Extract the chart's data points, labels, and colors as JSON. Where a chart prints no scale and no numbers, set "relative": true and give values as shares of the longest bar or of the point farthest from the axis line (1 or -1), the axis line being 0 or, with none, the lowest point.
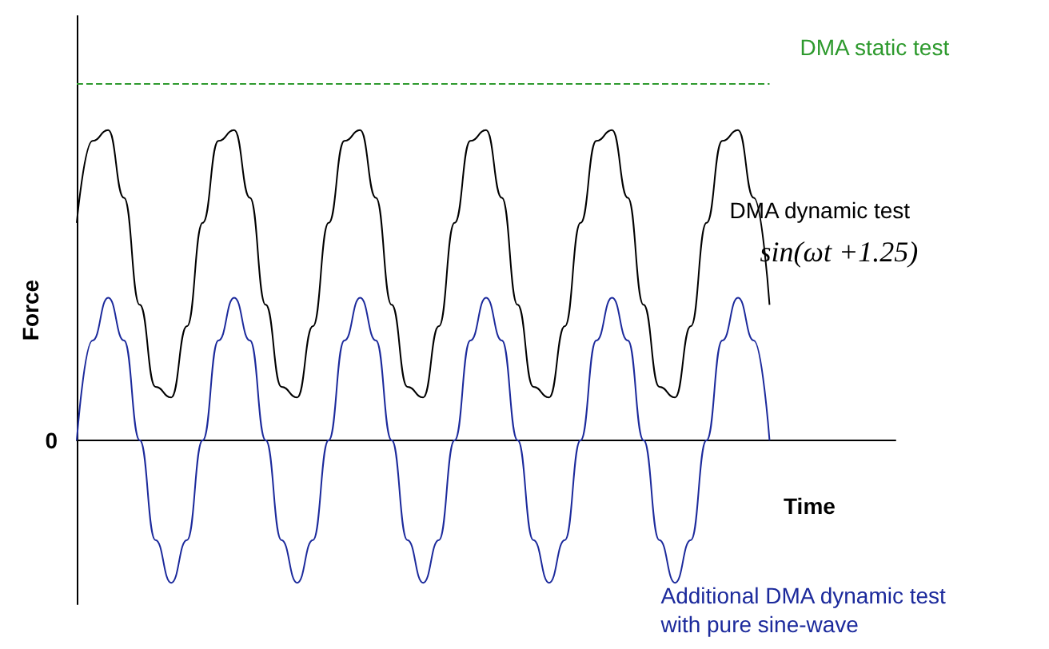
{
  "chart_data": {
    "type": "line",
    "relative": true,
    "xlabel": "Time",
    "ylabel": "Force",
    "legend": false,
    "grid": false,
    "marker": "none",
    "categories": [
      null,
      null,
      null,
      null,
      null,
      null,
      null,
      null,
      null,
      null,
      null,
      null,
      null,
      null,
      null,
      null,
      null,
      null,
      null,
      null,
      null,
      null,
      null,
      null,
      null,
      null,
      null,
      null,
      null,
      null,
      null,
      null,
      null,
      null,
      null,
      null,
      null,
      null,
      null,
      null,
      null,
      null,
      null,
      null,
      null,
      null,
      null,
      null,
      null,
      null,
      null,
      null,
      null
    ],
    "series": [
      {
        "name": "DMA static test",
        "color": "#2e9a2e",
        "line_style": "dashed",
        "values": [
          1,
          1,
          1,
          1,
          1,
          1,
          1,
          1,
          1,
          1,
          1,
          1,
          1,
          1,
          1,
          1,
          1,
          1,
          1,
          1,
          1,
          1,
          1,
          1,
          1,
          1,
          1,
          1,
          1,
          1,
          1,
          1,
          1,
          1,
          1,
          1,
          1,
          1,
          1,
          1,
          1,
          1,
          1,
          1,
          1,
          null,
          null,
          null,
          null,
          null,
          null,
          null,
          null
        ]
      },
      {
        "name": "DMA dynamic test",
        "color": "#000000",
        "line_style": "solid",
        "values": [
          0.61,
          0.84,
          0.87,
          0.68,
          0.38,
          0.15,
          0.12,
          0.32,
          0.61,
          0.84,
          0.87,
          0.68,
          0.38,
          0.15,
          0.12,
          0.32,
          0.61,
          0.84,
          0.87,
          0.68,
          0.38,
          0.15,
          0.12,
          0.32,
          0.61,
          0.84,
          0.87,
          0.68,
          0.38,
          0.15,
          0.12,
          0.32,
          0.61,
          0.84,
          0.87,
          0.68,
          0.38,
          0.15,
          0.12,
          0.32,
          0.61,
          0.84,
          0.87,
          0.68,
          0.38,
          null,
          null,
          null,
          null,
          null,
          null,
          null,
          null
        ]
      },
      {
        "name": "Additional DMA dynamic test\nwith pure sine-wave",
        "color": "#1c2a9c",
        "line_style": "solid",
        "values": [
          0,
          0.28,
          0.4,
          0.28,
          0,
          -0.28,
          -0.4,
          -0.28,
          0,
          0.28,
          0.4,
          0.28,
          0,
          -0.28,
          -0.4,
          -0.28,
          0,
          0.28,
          0.4,
          0.28,
          0,
          -0.28,
          -0.4,
          -0.28,
          0,
          0.28,
          0.4,
          0.28,
          0,
          -0.28,
          -0.4,
          -0.28,
          0,
          0.28,
          0.4,
          0.28,
          0,
          -0.28,
          -0.4,
          -0.28,
          0,
          0.28,
          0.4,
          0.28,
          0,
          null,
          null,
          null,
          null,
          null,
          null,
          null,
          null
        ]
      }
    ],
    "annotations": [
      "sin(ωt +1.25)",
      "0"
    ]
  }
}
